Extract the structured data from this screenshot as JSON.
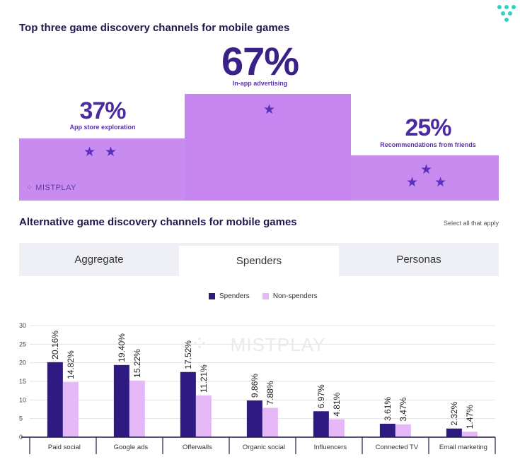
{
  "header": {
    "title": "Top three game discovery channels for mobile games"
  },
  "podium": {
    "left": {
      "value": "37%",
      "label": "App store exploration"
    },
    "middle": {
      "value": "67%",
      "label": "In-app advertising"
    },
    "right": {
      "value": "25%",
      "label": "Recommendations from friends"
    },
    "watermark": "MISTPLAY"
  },
  "section2": {
    "title": "Alternative game discovery channels for mobile games",
    "note": "Select all that apply"
  },
  "tabs": [
    {
      "label": "Aggregate"
    },
    {
      "label": "Spenders"
    },
    {
      "label": "Personas"
    }
  ],
  "legend": {
    "spenders": "Spenders",
    "nonspenders": "Non-spenders"
  },
  "colors": {
    "spenders": "#2e1a80",
    "nonspenders": "#e6b8f7",
    "podium": "#c88cf0",
    "star": "#5b2fbf"
  },
  "chart_data": {
    "type": "bar",
    "title": "Alternative game discovery channels for mobile games",
    "categories": [
      "Paid social",
      "Google ads",
      "Offerwalls",
      "Organic social",
      "Influencers",
      "Connected TV",
      "Email marketing"
    ],
    "series": [
      {
        "name": "Spenders",
        "values": [
          20.16,
          19.4,
          17.52,
          9.86,
          6.97,
          3.61,
          2.32
        ],
        "labels": [
          "20.16%",
          "19.40%",
          "17.52%",
          "9.86%",
          "6.97%",
          "3.61%",
          "2.32%"
        ]
      },
      {
        "name": "Non-spenders",
        "values": [
          14.82,
          15.22,
          11.21,
          7.88,
          4.81,
          3.47,
          1.47
        ],
        "labels": [
          "14.82%",
          "15.22%",
          "11.21%",
          "7.88%",
          "4.81%",
          "3.47%",
          "1.47%"
        ]
      }
    ],
    "yticks": [
      "0",
      "5",
      "10",
      "15",
      "20",
      "25",
      "30"
    ],
    "ylim": [
      0,
      30
    ],
    "grid": true,
    "legend": "top-center",
    "watermark": "MISTPLAY"
  }
}
